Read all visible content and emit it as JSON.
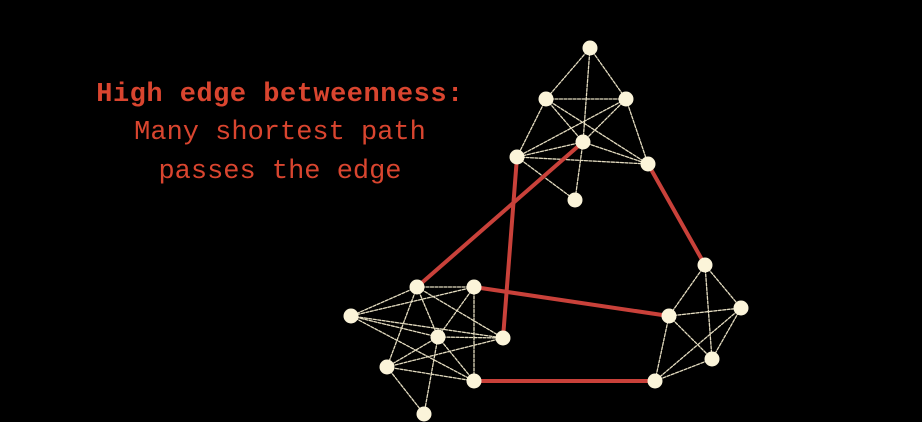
{
  "caption": {
    "headline": "High edge betweenness:",
    "line1": "Many shortest path",
    "line2": "passes the edge"
  },
  "colors": {
    "background": "#000000",
    "text": "#d9452f",
    "node": "#fbf4d9",
    "edge": "#e4dcc0",
    "bridge_edge": "#c9413a"
  },
  "graph": {
    "nodes": [
      "a1",
      "a2",
      "a3",
      "a4",
      "a5",
      "a6",
      "a7",
      "b1",
      "b2",
      "b3",
      "b4",
      "b5",
      "b6",
      "b7",
      "b8",
      "c1",
      "c2",
      "c3",
      "c4",
      "c5"
    ],
    "edges": [
      [
        "a1",
        "a2"
      ],
      [
        "a1",
        "a3"
      ],
      [
        "a1",
        "a4"
      ],
      [
        "a2",
        "a3"
      ],
      [
        "a2",
        "a4"
      ],
      [
        "a2",
        "a5"
      ],
      [
        "a2",
        "a6"
      ],
      [
        "a3",
        "a4"
      ],
      [
        "a3",
        "a5"
      ],
      [
        "a3",
        "a6"
      ],
      [
        "a4",
        "a5"
      ],
      [
        "a4",
        "a6"
      ],
      [
        "a4",
        "a7"
      ],
      [
        "a5",
        "a6"
      ],
      [
        "a5",
        "a7"
      ],
      [
        "b1",
        "b2"
      ],
      [
        "b1",
        "b3"
      ],
      [
        "b1",
        "b4"
      ],
      [
        "b1",
        "b5"
      ],
      [
        "b2",
        "b3"
      ],
      [
        "b2",
        "b4"
      ],
      [
        "b2",
        "b6"
      ],
      [
        "b3",
        "b4"
      ],
      [
        "b3",
        "b5"
      ],
      [
        "b3",
        "b6"
      ],
      [
        "b3",
        "b7"
      ],
      [
        "b3",
        "b8"
      ],
      [
        "b4",
        "b5"
      ],
      [
        "b4",
        "b6"
      ],
      [
        "b5",
        "b7"
      ],
      [
        "b6",
        "b7"
      ],
      [
        "b7",
        "b8"
      ],
      [
        "b1",
        "b7"
      ],
      [
        "c1",
        "c2"
      ],
      [
        "c1",
        "c3"
      ],
      [
        "c1",
        "c4"
      ],
      [
        "c2",
        "c3"
      ],
      [
        "c2",
        "c4"
      ],
      [
        "c2",
        "c5"
      ],
      [
        "c3",
        "c4"
      ],
      [
        "c3",
        "c5"
      ],
      [
        "c4",
        "c5"
      ]
    ],
    "bridges": [
      [
        "a4",
        "b1"
      ],
      [
        "a5",
        "b5"
      ],
      [
        "a6",
        "c1"
      ],
      [
        "b2",
        "c2"
      ],
      [
        "b6",
        "c5"
      ]
    ]
  }
}
